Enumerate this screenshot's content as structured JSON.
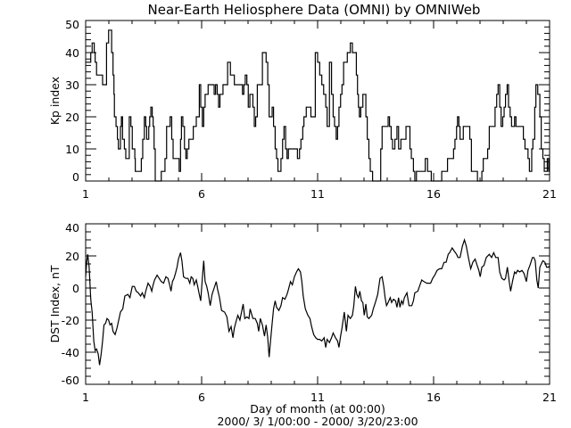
{
  "chart_data": [
    {
      "type": "line",
      "step": true,
      "title": "Near-Earth Heliosphere Data (OMNI) by OMNIWeb",
      "xlabel": "",
      "ylabel": "Kp index",
      "xlim": [
        1,
        21
      ],
      "ylim": [
        0,
        50
      ],
      "xticks": [
        "1",
        "6",
        "11",
        "16",
        "21"
      ],
      "yticks": [
        "0",
        "10",
        "20",
        "30",
        "40",
        "50"
      ],
      "series": [
        {
          "name": "Kp index",
          "x": [
            1.0,
            1.22,
            1.28,
            1.37,
            1.41,
            1.47,
            1.73,
            1.9,
            1.99,
            2.12,
            2.18,
            2.22,
            2.24,
            2.31,
            2.37,
            2.41,
            2.5,
            2.54,
            2.59,
            2.67,
            2.73,
            2.88,
            2.95,
            3.01,
            3.12,
            3.14,
            3.4,
            3.46,
            3.53,
            3.59,
            3.63,
            3.72,
            3.76,
            3.81,
            3.87,
            3.91,
            3.95,
            4.0,
            4.26,
            4.42,
            4.49,
            4.64,
            4.71,
            4.77,
            5.03,
            5.09,
            5.13,
            5.19,
            5.26,
            5.32,
            5.38,
            5.45,
            5.64,
            5.77,
            5.9,
            5.96,
            6.03,
            6.09,
            6.15,
            6.28,
            6.54,
            6.6,
            6.67,
            6.73,
            6.79,
            6.92,
            7.12,
            7.24,
            7.41,
            7.76,
            7.82,
            7.88,
            7.95,
            8.01,
            8.08,
            8.21,
            8.27,
            8.33,
            8.4,
            8.62,
            8.78,
            8.85,
            8.91,
            9.04,
            9.1,
            9.17,
            9.23,
            9.29,
            9.42,
            9.49,
            9.55,
            9.62,
            9.68,
            9.74,
            10.13,
            10.22,
            10.28,
            10.36,
            10.41,
            10.51,
            10.71,
            10.77,
            10.9,
            11.0,
            11.09,
            11.18,
            11.26,
            11.35,
            11.41,
            11.51,
            11.6,
            11.67,
            11.73,
            11.8,
            11.86,
            11.92,
            11.99,
            12.05,
            12.12,
            12.28,
            12.41,
            12.5,
            12.67,
            12.72,
            12.76,
            12.8,
            12.86,
            12.95,
            13.08,
            13.14,
            13.21,
            13.27,
            13.37,
            13.72,
            13.78,
            14.04,
            14.1,
            14.17,
            14.23,
            14.33,
            14.42,
            14.49,
            14.59,
            14.81,
            14.98,
            15.04,
            15.13,
            15.19,
            15.26,
            15.64,
            15.74,
            15.9,
            16.35,
            16.6,
            16.86,
            16.92,
            16.99,
            17.03,
            17.09,
            17.14,
            17.28,
            17.56,
            17.63,
            17.89,
            18.08,
            18.14,
            18.33,
            18.4,
            18.65,
            18.72,
            18.78,
            18.85,
            18.91,
            18.98,
            19.04,
            19.1,
            19.17,
            19.23,
            19.3,
            19.36,
            19.49,
            19.55,
            19.81,
            19.87,
            19.94,
            20.07,
            20.13,
            20.23,
            20.28,
            20.36,
            20.41,
            20.49,
            20.58,
            20.64,
            20.71,
            20.77,
            20.9,
            20.96
          ],
          "y": [
            37,
            40,
            43,
            40,
            37,
            33,
            30,
            43,
            47,
            40,
            33,
            27,
            20,
            17,
            13,
            10,
            17,
            20,
            13,
            10,
            7,
            20,
            17,
            10,
            7,
            3,
            7,
            13,
            20,
            17,
            13,
            17,
            20,
            23,
            20,
            17,
            10,
            0,
            3,
            7,
            17,
            20,
            13,
            7,
            3,
            13,
            20,
            17,
            10,
            7,
            10,
            13,
            17,
            20,
            30,
            23,
            17,
            23,
            27,
            30,
            27,
            30,
            27,
            23,
            27,
            30,
            37,
            33,
            30,
            27,
            30,
            33,
            30,
            23,
            27,
            23,
            17,
            20,
            30,
            40,
            37,
            30,
            20,
            23,
            17,
            10,
            7,
            3,
            7,
            13,
            17,
            10,
            7,
            10,
            7,
            10,
            13,
            17,
            20,
            23,
            20,
            20,
            40,
            37,
            33,
            30,
            27,
            23,
            17,
            37,
            27,
            20,
            17,
            13,
            17,
            23,
            27,
            30,
            37,
            40,
            43,
            40,
            33,
            27,
            23,
            20,
            23,
            27,
            20,
            13,
            7,
            3,
            0,
            10,
            17,
            20,
            17,
            13,
            10,
            13,
            17,
            10,
            13,
            17,
            10,
            7,
            3,
            0,
            3,
            7,
            3,
            0,
            3,
            7,
            10,
            13,
            17,
            20,
            17,
            13,
            17,
            13,
            3,
            0,
            3,
            7,
            10,
            17,
            23,
            27,
            30,
            23,
            17,
            20,
            23,
            27,
            30,
            23,
            20,
            17,
            20,
            17,
            17,
            13,
            10,
            7,
            3,
            10,
            13,
            23,
            30,
            27,
            20,
            10,
            7,
            3,
            7,
            3
          ]
        }
      ]
    },
    {
      "type": "line",
      "title": "",
      "xlabel": "Day of month (at 00:00)",
      "xlabel2": "2000/ 3/ 1/00:00 - 2000/ 3/20/23:00",
      "ylabel": "DST Index, nT",
      "xlim": [
        1,
        21
      ],
      "ylim": [
        -60,
        40
      ],
      "xticks": [
        "1",
        "6",
        "11",
        "16",
        "21"
      ],
      "yticks": [
        "-60",
        "-40",
        "-20",
        "0",
        "20",
        "40"
      ],
      "series": [
        {
          "name": "DST Index",
          "x": [
            1.0,
            1.05,
            1.09,
            1.15,
            1.22,
            1.28,
            1.35,
            1.41,
            1.47,
            1.54,
            1.6,
            1.67,
            1.73,
            1.79,
            1.86,
            1.92,
            1.99,
            2.05,
            2.12,
            2.18,
            2.27,
            2.35,
            2.44,
            2.5,
            2.6,
            2.69,
            2.82,
            2.91,
            3.01,
            3.1,
            3.18,
            3.27,
            3.37,
            3.44,
            3.53,
            3.59,
            3.69,
            3.78,
            3.85,
            3.91,
            3.97,
            4.08,
            4.17,
            4.26,
            4.36,
            4.46,
            4.55,
            4.62,
            4.68,
            4.74,
            4.81,
            4.87,
            4.94,
            5.0,
            5.09,
            5.15,
            5.22,
            5.32,
            5.41,
            5.49,
            5.55,
            5.62,
            5.68,
            5.77,
            5.83,
            5.9,
            5.96,
            6.03,
            6.09,
            6.15,
            6.22,
            6.28,
            6.37,
            6.45,
            6.54,
            6.63,
            6.69,
            6.77,
            6.86,
            6.99,
            7.09,
            7.18,
            7.27,
            7.35,
            7.41,
            7.5,
            7.56,
            7.65,
            7.72,
            7.79,
            7.86,
            7.95,
            8.04,
            8.09,
            8.21,
            8.31,
            8.4,
            8.46,
            8.53,
            8.62,
            8.71,
            8.78,
            8.85,
            8.91,
            8.97,
            9.04,
            9.1,
            9.17,
            9.23,
            9.33,
            9.42,
            9.49,
            9.59,
            9.68,
            9.74,
            9.83,
            9.91,
            10.0,
            10.09,
            10.17,
            10.26,
            10.32,
            10.38,
            10.47,
            10.58,
            10.67,
            10.74,
            10.83,
            10.92,
            11.0,
            11.09,
            11.18,
            11.28,
            11.35,
            11.41,
            11.51,
            11.6,
            11.67,
            11.77,
            11.86,
            11.92,
            11.99,
            12.05,
            12.15,
            12.24,
            12.31,
            12.41,
            12.5,
            12.56,
            12.63,
            12.69,
            12.76,
            12.82,
            12.89,
            12.95,
            13.01,
            13.08,
            13.14,
            13.21,
            13.33,
            13.4,
            13.49,
            13.59,
            13.69,
            13.78,
            13.85,
            13.91,
            13.97,
            14.04,
            14.13,
            14.19,
            14.27,
            14.36,
            14.42,
            14.49,
            14.55,
            14.62,
            14.68,
            14.74,
            14.85,
            14.94,
            15.06,
            15.13,
            15.19,
            15.32,
            15.39,
            15.49,
            15.58,
            15.71,
            15.87,
            15.96,
            16.05,
            16.15,
            16.26,
            16.35,
            16.45,
            16.54,
            16.63,
            16.69,
            16.8,
            16.89,
            16.99,
            17.05,
            17.14,
            17.24,
            17.33,
            17.41,
            17.5,
            17.6,
            17.69,
            17.79,
            17.88,
            17.95,
            18.01,
            18.08,
            18.17,
            18.27,
            18.4,
            18.5,
            18.59,
            18.68,
            18.78,
            18.85,
            18.94,
            19.04,
            19.1,
            19.18,
            19.26,
            19.32,
            19.4,
            19.49,
            19.55,
            19.62,
            19.71,
            19.81,
            19.9,
            20.0,
            20.07,
            20.15,
            20.26,
            20.32,
            20.38,
            20.45,
            20.51,
            20.58,
            20.71,
            20.8,
            20.87,
            20.96,
            21.0
          ],
          "y": [
            7,
            17,
            21,
            13,
            -7,
            -15,
            -33,
            -39,
            -38,
            -41,
            -48,
            -41,
            -33,
            -23,
            -22,
            -19,
            -20,
            -23,
            -22,
            -27,
            -29,
            -25,
            -19,
            -15,
            -13,
            -5,
            -4,
            -6,
            1,
            1,
            -2,
            -3,
            -5,
            -3,
            -6,
            -2,
            3,
            1,
            -2,
            2,
            5,
            8,
            6,
            4,
            3,
            7,
            6,
            2,
            -2,
            4,
            6,
            9,
            13,
            18,
            22,
            17,
            7,
            6,
            6,
            3,
            7,
            6,
            2,
            5,
            1,
            -4,
            -8,
            6,
            17,
            4,
            1,
            -3,
            -11,
            -4,
            0,
            4,
            -1,
            -6,
            -14,
            -15,
            -18,
            -27,
            -24,
            -31,
            -25,
            -20,
            -17,
            -20,
            -15,
            -10,
            -19,
            -18,
            -19,
            -13,
            -19,
            -19,
            -22,
            -27,
            -19,
            -23,
            -30,
            -23,
            -31,
            -43,
            -33,
            -22,
            -13,
            -8,
            -12,
            -14,
            -11,
            -6,
            -7,
            -4,
            -1,
            4,
            2,
            7,
            10,
            12,
            10,
            4,
            -5,
            -13,
            -17,
            -19,
            -24,
            -29,
            -31,
            -32,
            -32,
            -33,
            -31,
            -37,
            -32,
            -34,
            -31,
            -28,
            -31,
            -33,
            -37,
            -30,
            -25,
            -15,
            -27,
            -17,
            -19,
            -17,
            -11,
            1,
            -4,
            -6,
            -2,
            -8,
            -9,
            -17,
            -10,
            -18,
            -19,
            -17,
            -13,
            -9,
            -4,
            6,
            7,
            1,
            -6,
            -11,
            -9,
            -6,
            -9,
            -7,
            -8,
            -12,
            -6,
            -12,
            -8,
            -10,
            -6,
            -3,
            -11,
            -11,
            -8,
            -3,
            -2,
            1,
            5,
            4,
            3,
            3,
            6,
            8,
            11,
            12,
            12,
            16,
            16,
            21,
            22,
            25,
            23,
            21,
            19,
            19,
            26,
            30,
            26,
            19,
            12,
            16,
            18,
            14,
            11,
            7,
            13,
            14,
            19,
            21,
            19,
            22,
            19,
            19,
            10,
            6,
            5,
            6,
            13,
            4,
            -2,
            4,
            10,
            9,
            11,
            10,
            11,
            9,
            4,
            11,
            14,
            19,
            19,
            17,
            5,
            0,
            13,
            17,
            16,
            13,
            13,
            14
          ]
        }
      ]
    }
  ]
}
